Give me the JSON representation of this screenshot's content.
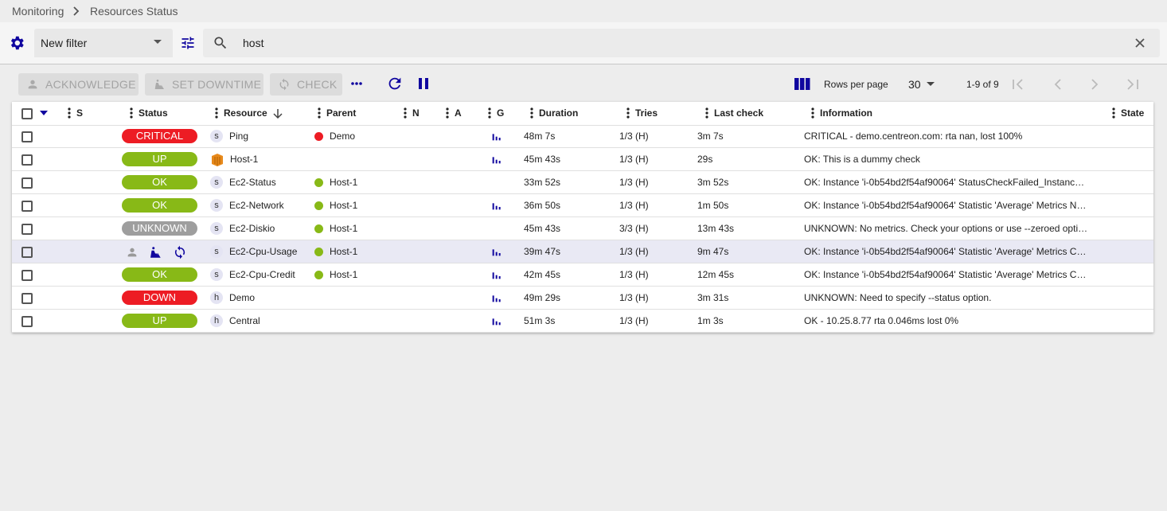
{
  "breadcrumb": [
    "Monitoring",
    "Resources Status"
  ],
  "filter": {
    "name": "New filter",
    "search": "host"
  },
  "actions": [
    "ACKNOWLEDGE",
    "SET DOWNTIME",
    "CHECK"
  ],
  "pagination": {
    "rows_per_page_label": "Rows per page",
    "rows_per_page": "30",
    "range": "1-9 of 9"
  },
  "table": {
    "columns": [
      "S",
      "Status",
      "Resource",
      "Parent",
      "N",
      "A",
      "G",
      "Duration",
      "Tries",
      "Last check",
      "Information",
      "State"
    ],
    "rows": [
      {
        "status": "CRITICAL",
        "status_color": "#ed1c24",
        "type": "s",
        "resource": "Ping",
        "parent": "Demo",
        "parent_color": "#ed1c24",
        "graph": true,
        "duration": "48m 7s",
        "tries": "1/3 (H)",
        "last_check": "3m 7s",
        "information": "CRITICAL - demo.centreon.com: rta nan, lost 100%"
      },
      {
        "status": "UP",
        "status_color": "#88b917",
        "resource": "Host-1",
        "graph": true,
        "duration": "45m 43s",
        "tries": "1/3 (H)",
        "last_check": "29s",
        "information": "OK: This is a dummy check"
      },
      {
        "status": "OK",
        "status_color": "#88b917",
        "type": "s",
        "resource": "Ec2-Status",
        "parent": "Host-1",
        "parent_color": "#88b917",
        "graph": false,
        "duration": "33m 52s",
        "tries": "1/3 (H)",
        "last_check": "3m 52s",
        "information": "OK: Instance 'i-0b54bd2f54af90064' StatusCheckFailed_Instanc…"
      },
      {
        "status": "OK",
        "status_color": "#88b917",
        "type": "s",
        "resource": "Ec2-Network",
        "parent": "Host-1",
        "parent_color": "#88b917",
        "graph": true,
        "duration": "36m 50s",
        "tries": "1/3 (H)",
        "last_check": "1m 50s",
        "information": "OK: Instance 'i-0b54bd2f54af90064' Statistic 'Average' Metrics N…"
      },
      {
        "status": "UNKNOWN",
        "status_color": "#9e9e9e",
        "type": "s",
        "resource": "Ec2-Diskio",
        "parent": "Host-1",
        "parent_color": "#88b917",
        "graph": false,
        "duration": "45m 43s",
        "tries": "3/3 (H)",
        "last_check": "13m 43s",
        "information": "UNKNOWN: No metrics. Check your options or use --zeroed opti…"
      },
      {
        "type": "s",
        "resource": "Ec2-Cpu-Usage",
        "parent": "Host-1",
        "parent_color": "#88b917",
        "graph": true,
        "duration": "39m 47s",
        "tries": "1/3 (H)",
        "last_check": "9m 47s",
        "information": "OK: Instance 'i-0b54bd2f54af90064' Statistic 'Average' Metrics C…"
      },
      {
        "status": "OK",
        "status_color": "#88b917",
        "type": "s",
        "resource": "Ec2-Cpu-Credit",
        "parent": "Host-1",
        "parent_color": "#88b917",
        "graph": true,
        "duration": "42m 45s",
        "tries": "1/3 (H)",
        "last_check": "12m 45s",
        "information": "OK: Instance 'i-0b54bd2f54af90064' Statistic 'Average' Metrics C…"
      },
      {
        "status": "DOWN",
        "status_color": "#ed1c24",
        "type": "h",
        "resource": "Demo",
        "graph": true,
        "duration": "49m 29s",
        "tries": "1/3 (H)",
        "last_check": "3m 31s",
        "information": "UNKNOWN: Need to specify --status option."
      },
      {
        "status": "UP",
        "status_color": "#88b917",
        "type": "h",
        "resource": "Central",
        "graph": true,
        "duration": "51m 3s",
        "tries": "1/3 (H)",
        "last_check": "1m 3s",
        "information": "OK - 10.25.8.77 rta 0.046ms lost 0%"
      }
    ]
  }
}
